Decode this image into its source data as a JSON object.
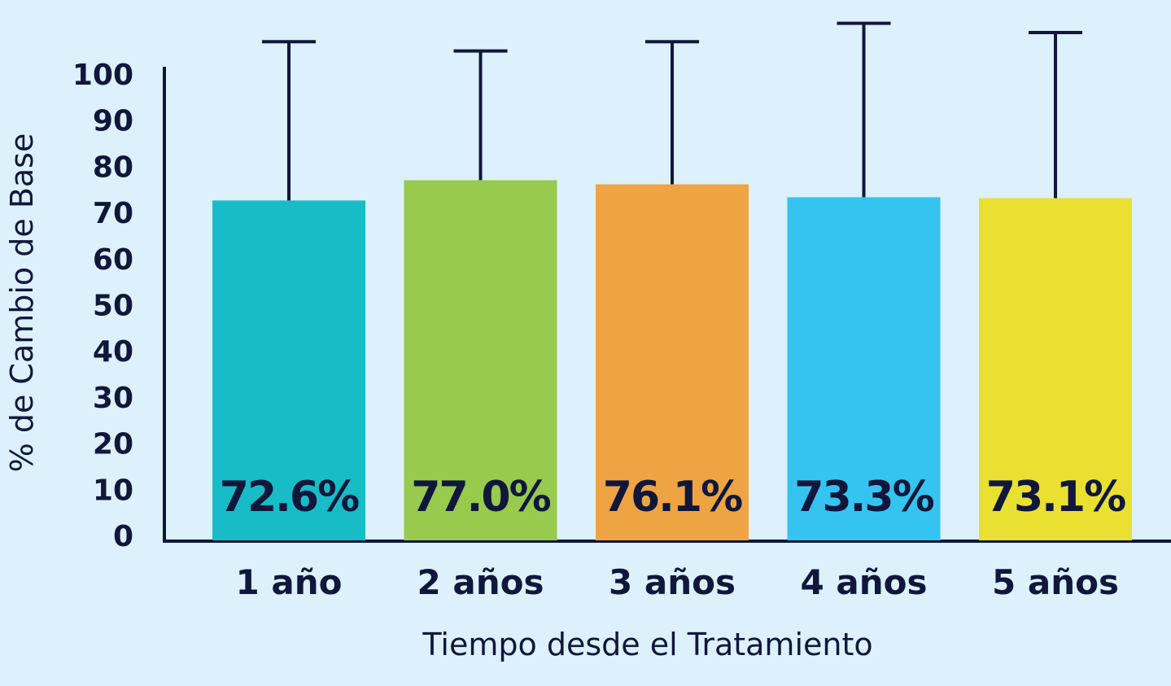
{
  "chart_data": {
    "type": "bar",
    "categories": [
      "1 año",
      "2 años",
      "3 años",
      "4 años",
      "5 años"
    ],
    "values": [
      72.6,
      77.0,
      76.1,
      73.3,
      73.1
    ],
    "error_upper": [
      107,
      105,
      107,
      111,
      109
    ],
    "value_labels": [
      "72.6%",
      "77.0%",
      "76.1%",
      "73.3%",
      "73.1%"
    ],
    "colors": [
      "#17bcc7",
      "#97ca4d",
      "#eea443",
      "#35c4ef",
      "#e9e032"
    ],
    "xlabel": "Tiempo desde el Tratamiento",
    "ylabel": "% de Cambio de Base",
    "ylim": [
      0,
      100
    ],
    "yticks": [
      0,
      10,
      20,
      30,
      40,
      50,
      60,
      70,
      80,
      90,
      100
    ],
    "grid": false,
    "legend": "none"
  }
}
